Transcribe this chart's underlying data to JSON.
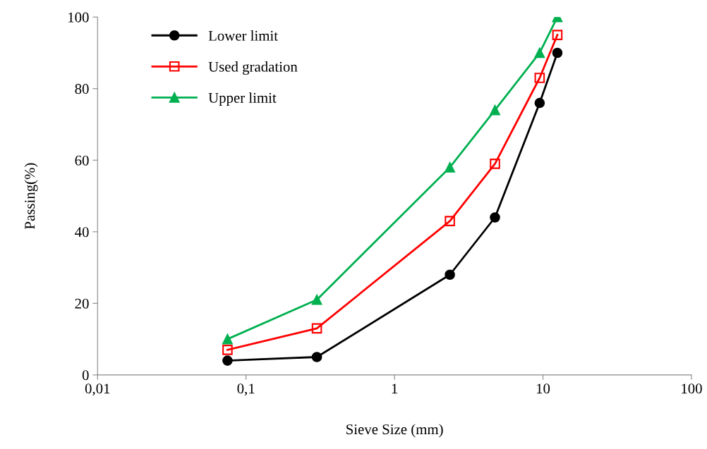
{
  "chart_data": {
    "type": "line",
    "xlabel": "Sieve Size (mm)",
    "ylabel": "Passing(%)",
    "x": [
      0.075,
      0.3,
      2.36,
      4.75,
      9.5,
      12.5
    ],
    "series": [
      {
        "name": "Lower limit",
        "color": "#000000",
        "marker": "circle",
        "values": [
          4,
          5,
          28,
          44,
          76,
          90
        ]
      },
      {
        "name": "Used gradation",
        "color": "#ff0000",
        "marker": "square",
        "values": [
          7,
          13,
          43,
          59,
          83,
          95
        ]
      },
      {
        "name": "Upper limit",
        "color": "#00b050",
        "marker": "triangle",
        "values": [
          10,
          21,
          58,
          74,
          90,
          100
        ]
      }
    ],
    "log": "x",
    "xlim": [
      0.01,
      100
    ],
    "xticks": [
      {
        "value": 0.01,
        "label": "0,01"
      },
      {
        "value": 0.1,
        "label": "0,1"
      },
      1,
      10,
      100
    ],
    "ylim": [
      0,
      100
    ],
    "yticks": [
      0,
      20,
      40,
      60,
      80,
      100
    ],
    "grid": false,
    "legend": "top left",
    "line_style": "solid"
  }
}
